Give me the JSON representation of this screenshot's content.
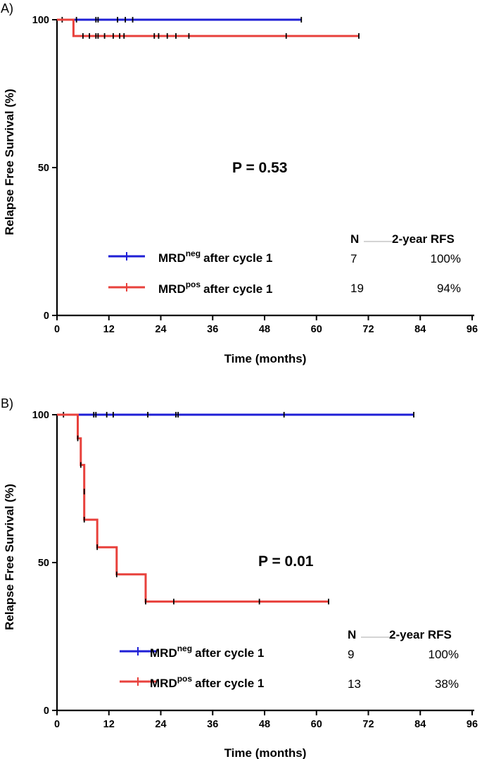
{
  "chart_data": [
    {
      "panel_label": "A)",
      "type": "line",
      "subtype": "kaplan-meier-step",
      "xlabel": "Time (months)",
      "ylabel": "Relapse Free Survival (%)",
      "xlim": [
        0,
        96
      ],
      "ylim": [
        0,
        100
      ],
      "xticks": [
        "0",
        "12",
        "24",
        "36",
        "48",
        "60",
        "72",
        "84",
        "96"
      ],
      "yticks": [
        "0",
        "50",
        "100"
      ],
      "annotation": "P = 0.53",
      "table_headers": {
        "n": "N",
        "rfs": "2-year RFS"
      },
      "series": [
        {
          "name": "MRD neg after cycle 1",
          "legend_main": "MRD",
          "legend_sup": "neg",
          "legend_rest": "after cycle 1",
          "n": "7",
          "rfs": "100%",
          "color": "#1f1fd6",
          "steps": [
            [
              0,
              100
            ],
            [
              56.5,
              100
            ]
          ],
          "censored": [
            [
              1.2,
              100
            ],
            [
              4.5,
              100
            ],
            [
              9,
              100
            ],
            [
              9.5,
              100
            ],
            [
              14,
              100
            ],
            [
              15.8,
              100
            ],
            [
              17.5,
              100
            ],
            [
              56.5,
              100
            ]
          ]
        },
        {
          "name": "MRD pos after cycle 1",
          "legend_main": "MRD",
          "legend_sup": "pos",
          "legend_rest": "after cycle 1",
          "n": "19",
          "rfs": "94%",
          "color": "#e8413c",
          "steps": [
            [
              0,
              100
            ],
            [
              3.8,
              100
            ],
            [
              3.8,
              94.5
            ],
            [
              69.8,
              94.5
            ]
          ],
          "censored": [
            [
              6,
              94.5
            ],
            [
              7.5,
              94.5
            ],
            [
              9,
              94.5
            ],
            [
              9.5,
              94.5
            ],
            [
              11,
              94.5
            ],
            [
              13,
              94.5
            ],
            [
              14.5,
              94.5
            ],
            [
              15.5,
              94.5
            ],
            [
              22.5,
              94.5
            ],
            [
              23.5,
              94.5
            ],
            [
              25.5,
              94.5
            ],
            [
              27.5,
              94.5
            ],
            [
              30.5,
              94.5
            ],
            [
              53,
              94.5
            ],
            [
              69.8,
              94.5
            ]
          ]
        }
      ]
    },
    {
      "panel_label": "B)",
      "type": "line",
      "subtype": "kaplan-meier-step",
      "xlabel": "Time (months)",
      "ylabel": "Relapse Free Survival (%)",
      "xlim": [
        0,
        96
      ],
      "ylim": [
        0,
        100
      ],
      "xticks": [
        "0",
        "12",
        "24",
        "36",
        "48",
        "60",
        "72",
        "84",
        "96"
      ],
      "yticks": [
        "0",
        "50",
        "100"
      ],
      "annotation": "P = 0.01",
      "table_headers": {
        "n": "N",
        "rfs": "2-year RFS"
      },
      "series": [
        {
          "name": "MRD neg after cycle 1",
          "legend_main": "MRD",
          "legend_sup": "neg",
          "legend_rest": "after cycle 1",
          "n": "9",
          "rfs": "100%",
          "color": "#1f1fd6",
          "steps": [
            [
              0,
              100
            ],
            [
              82.5,
              100
            ]
          ],
          "censored": [
            [
              1.5,
              100
            ],
            [
              8.5,
              100
            ],
            [
              9,
              100
            ],
            [
              11.5,
              100
            ],
            [
              13,
              100
            ],
            [
              21,
              100
            ],
            [
              27.5,
              100
            ],
            [
              28,
              100
            ],
            [
              52.5,
              100
            ],
            [
              82.5,
              100
            ]
          ]
        },
        {
          "name": "MRD pos after cycle 1",
          "legend_main": "MRD",
          "legend_sup": "pos",
          "legend_rest": "after cycle 1",
          "n": "13",
          "rfs": "38%",
          "color": "#e8413c",
          "steps": [
            [
              0,
              100
            ],
            [
              4.8,
              100
            ],
            [
              4.8,
              92
            ],
            [
              5.5,
              92
            ],
            [
              5.5,
              83
            ],
            [
              6.3,
              83
            ],
            [
              6.3,
              64.5
            ],
            [
              9.3,
              64.5
            ],
            [
              9.3,
              55.2
            ],
            [
              13.8,
              55.2
            ],
            [
              13.8,
              46
            ],
            [
              20.5,
              46
            ],
            [
              20.5,
              36.8
            ],
            [
              62.8,
              36.8
            ]
          ],
          "censored": [
            [
              4.8,
              92
            ],
            [
              5.5,
              83
            ],
            [
              6.3,
              74
            ],
            [
              6.3,
              64.5
            ],
            [
              9.3,
              55.2
            ],
            [
              13.8,
              46
            ],
            [
              20.5,
              36.8
            ],
            [
              27,
              36.8
            ],
            [
              46.8,
              36.8
            ],
            [
              62.8,
              36.8
            ]
          ]
        }
      ]
    }
  ]
}
